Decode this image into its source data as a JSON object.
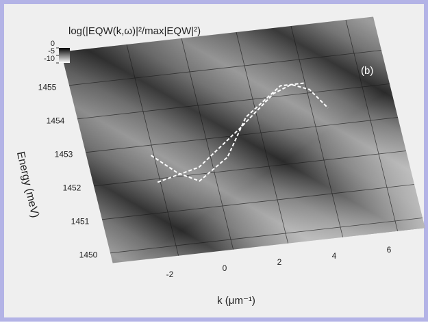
{
  "chart_data": {
    "type": "surface",
    "title": "log(|EQW(k,ω)|²/max|EQW|²)",
    "annotation": "(b)",
    "x_label": "k (μm⁻¹)",
    "y_label": "Energy (meV)",
    "xlim": [
      -4.4,
      7
    ],
    "xticks": [
      -2,
      0,
      2,
      4,
      6
    ],
    "ylim": [
      1449.7,
      1456
    ],
    "yticks": [
      1450,
      1451,
      1452,
      1453,
      1454,
      1455
    ],
    "zlim": [
      -10,
      0
    ],
    "zticks": [
      0,
      -5,
      -10
    ],
    "series": [
      {
        "color": "#ffffff",
        "x": [
          -2.1,
          -0.5,
          1.3,
          2.8,
          3.5,
          4.1,
          4.6
        ],
        "values": [
          1451.9,
          1452.2,
          1453.2,
          1454.1,
          1454.3,
          1454.1,
          1453.5
        ]
      },
      {
        "color": "#ffffff",
        "x": [
          -2.1,
          -1.3,
          -0.6,
          0.6,
          1.6,
          3.1,
          4.0
        ],
        "values": [
          1452.7,
          1452.1,
          1451.8,
          1452.4,
          1453.5,
          1454.3,
          1454.3
        ]
      }
    ]
  }
}
